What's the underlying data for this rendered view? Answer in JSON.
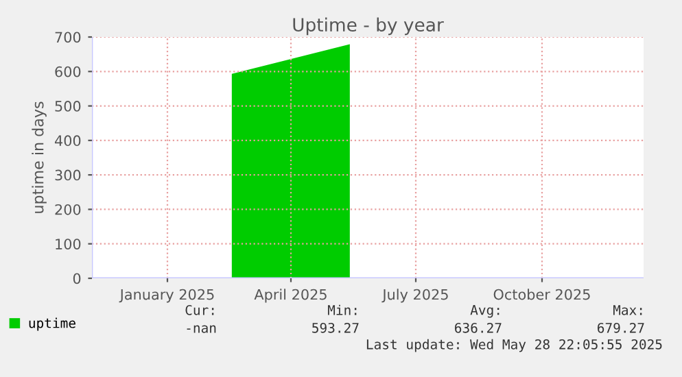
{
  "chart_data": {
    "type": "area",
    "title": "Uptime - by year",
    "ylabel": "uptime in days",
    "x": [
      "2025-03-03T22:05",
      "2025-05-28T22:05"
    ],
    "series": [
      {
        "name": "uptime",
        "color": "#00cc00",
        "values": [
          593.27,
          679.27
        ]
      }
    ],
    "xlim": [
      "2024-11-22",
      "2025-12-29"
    ],
    "xticks": [
      {
        "value": "2025-01-16",
        "label": "January 2025"
      },
      {
        "value": "2025-04-16",
        "label": "April 2025"
      },
      {
        "value": "2025-07-16",
        "label": "July 2025"
      },
      {
        "value": "2025-10-16",
        "label": "October 2025"
      }
    ],
    "ylim": [
      0,
      700
    ],
    "yticks": [
      0,
      100,
      200,
      300,
      400,
      500,
      600,
      700
    ],
    "grid": true,
    "legend": "bottom left",
    "annotations": [
      "Cur:",
      "Min:",
      "Avg:",
      "Max:",
      "-nan",
      "593.27",
      "636.27",
      "679.27",
      "Last update: Wed May 28 22:05:55 2025"
    ]
  }
}
